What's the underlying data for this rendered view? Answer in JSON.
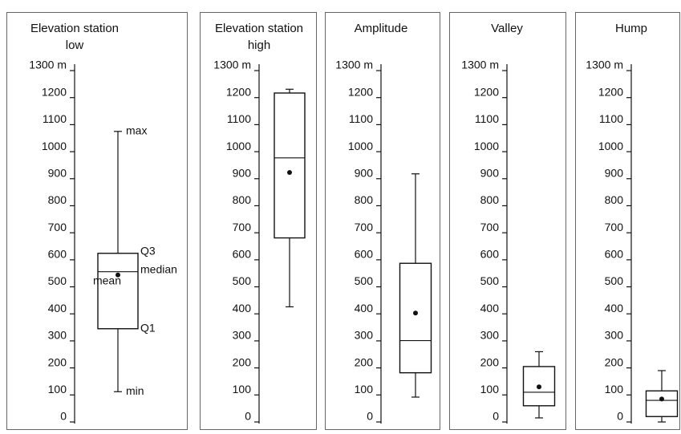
{
  "chart_data": [
    {
      "type": "box",
      "title": "Elevation station low",
      "ylim": [
        0,
        1300
      ],
      "yticks": [
        0,
        100,
        200,
        300,
        400,
        500,
        600,
        700,
        800,
        900,
        1000,
        1100,
        1200,
        {
          "value": 1300,
          "label": "1300 m"
        }
      ],
      "min": 112,
      "q1": 345,
      "median": 556,
      "q3": 624,
      "max": 1075,
      "mean": 544,
      "annotations": {
        "max": "max",
        "q3": "Q3",
        "median": "median",
        "mean": "mean",
        "q1": "Q1",
        "min": "min"
      }
    },
    {
      "type": "box",
      "title": "Elevation station high",
      "ylim": [
        0,
        1300
      ],
      "yticks": [
        0,
        100,
        200,
        300,
        400,
        500,
        600,
        700,
        800,
        900,
        1000,
        1100,
        1200,
        {
          "value": 1300,
          "label": "1300 m"
        }
      ],
      "min": 426,
      "q1": 681,
      "median": 977,
      "q3": 1217,
      "max": 1231,
      "mean": 923
    },
    {
      "type": "box",
      "title": "Amplitude",
      "ylim": [
        0,
        1300
      ],
      "yticks": [
        0,
        100,
        200,
        300,
        400,
        500,
        600,
        700,
        800,
        900,
        1000,
        1100,
        1200,
        {
          "value": 1300,
          "label": "1300 m"
        }
      ],
      "min": 92,
      "q1": 182,
      "median": 301,
      "q3": 587,
      "max": 918,
      "mean": 403
    },
    {
      "type": "box",
      "title": "Valley",
      "ylim": [
        0,
        1300
      ],
      "yticks": [
        0,
        100,
        200,
        300,
        400,
        500,
        600,
        700,
        800,
        900,
        1000,
        1100,
        1200,
        {
          "value": 1300,
          "label": "1300 m"
        }
      ],
      "min": 15,
      "q1": 60,
      "median": 110,
      "q3": 205,
      "max": 260,
      "mean": 130
    },
    {
      "type": "box",
      "title": "Hump",
      "ylim": [
        0,
        1300
      ],
      "yticks": [
        0,
        100,
        200,
        300,
        400,
        500,
        600,
        700,
        800,
        900,
        1000,
        1100,
        1200,
        {
          "value": 1300,
          "label": "1300 m"
        }
      ],
      "min": 0,
      "q1": 20,
      "median": 80,
      "q3": 115,
      "max": 190,
      "mean": 85
    }
  ]
}
